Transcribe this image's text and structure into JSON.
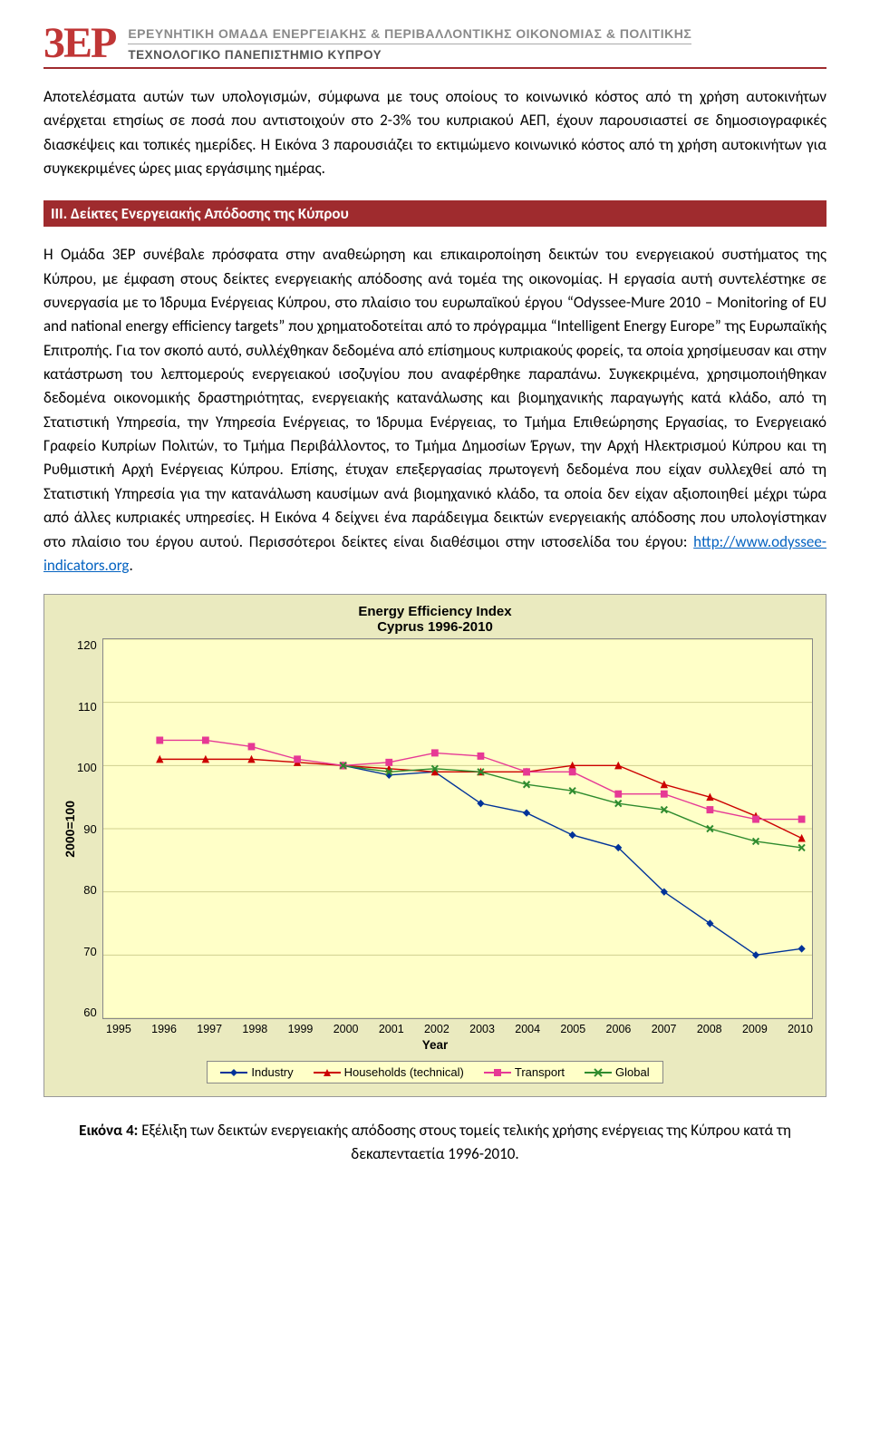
{
  "header": {
    "logo": "3EP",
    "line1": "ΕΡΕΥΝΗΤΙΚΗ ΟΜΑΔΑ ΕΝΕΡΓΕΙΑΚΗΣ & ΠΕΡΙΒΑΛΛΟΝΤΙΚΗΣ ΟΙΚΟΝΟΜΙΑΣ & ΠΟΛΙΤΙΚΗΣ",
    "line2": "ΤΕΧΝΟΛΟΓΙΚΟ ΠΑΝΕΠΙΣΤΗΜΙΟ ΚΥΠΡΟΥ"
  },
  "paragraph1": "Αποτελέσματα αυτών των υπολογισμών, σύμφωνα με τους οποίους το κοινωνικό κόστος από τη χρήση αυτοκινήτων ανέρχεται ετησίως σε ποσά που αντιστοιχούν στο 2-3% του κυπριακού ΑΕΠ, έχουν παρουσιαστεί σε δημοσιογραφικές διασκέψεις και τοπικές ημερίδες. Η Εικόνα 3 παρουσιάζει το εκτιμώμενο κοινωνικό κόστος από τη χρήση αυτοκινήτων για συγκεκριμένες ώρες μιας εργάσιμης ημέρας.",
  "section_heading": "III. Δείκτες Ενεργειακής Απόδοσης της Κύπρου",
  "paragraph2_a": "Η Ομάδα 3ΕΡ συνέβαλε πρόσφατα στην αναθεώρηση και επικαιροποίηση δεικτών του ενεργειακού συστήματος της Κύπρου, με έμφαση στους δείκτες ενεργειακής απόδοσης ανά τομέα της οικονομίας. Η εργασία αυτή συντελέστηκε σε συνεργασία με το Ίδρυμα Ενέργειας Κύπρου, στο πλαίσιο του ευρωπαϊκού έργου “Odyssee-Mure 2010 – Monitoring of EU and national energy efficiency targets” που χρηματοδοτείται από το πρόγραμμα “Intelligent Energy Europe” της Ευρωπαϊκής Επιτροπής. Για τον σκοπό αυτό, συλλέχθηκαν δεδομένα από επίσημους κυπριακούς φορείς, τα οποία χρησίμευσαν και στην κατάστρωση του λεπτομερούς ενεργειακού ισοζυγίου που αναφέρθηκε παραπάνω. Συγκεκριμένα, χρησιμοποιήθηκαν δεδομένα οικονομικής δραστηριότητας, ενεργειακής κατανάλωσης και βιομηχανικής παραγωγής κατά κλάδο, από τη Στατιστική Υπηρεσία, την Υπηρεσία Ενέργειας, το Ίδρυμα Ενέργειας, το Τμήμα Επιθεώρησης Εργασίας, το Ενεργειακό Γραφείο Κυπρίων Πολιτών, το Τμήμα Περιβάλλοντος, το Τμήμα Δημοσίων Έργων, την Αρχή Ηλεκτρισμού Κύπρου και τη Ρυθμιστική Αρχή Ενέργειας Κύπρου. Επίσης, έτυχαν επεξεργασίας πρωτογενή δεδομένα που είχαν συλλεχθεί από τη Στατιστική Υπηρεσία για την κατανάλωση καυσίμων ανά βιομηχανικό κλάδο, τα οποία δεν είχαν αξιοποιηθεί μέχρι τώρα από άλλες κυπριακές υπηρεσίες. Η Εικόνα 4 δείχνει ένα παράδειγμα δεικτών ενεργειακής απόδοσης που υπολογίστηκαν στο πλαίσιο του έργου αυτού. Περισσότεροι δείκτες είναι διαθέσιμοι στην ιστοσελίδα του έργου: ",
  "link_text": "http://www.odyssee-indicators.org",
  "link_href": "http://www.odyssee-indicators.org",
  "paragraph2_b": ".",
  "chart": {
    "type": "line",
    "title": "Energy Efficiency Index",
    "subtitle": "Cyprus 1996-2010",
    "xlabel": "Year",
    "ylabel": "2000=100",
    "years": [
      1995,
      1996,
      1997,
      1998,
      1999,
      2000,
      2001,
      2002,
      2003,
      2004,
      2005,
      2006,
      2007,
      2008,
      2009,
      2010
    ],
    "yticks": [
      60,
      70,
      80,
      90,
      100,
      110,
      120
    ],
    "ylim": [
      60,
      120
    ],
    "background_color": "#ffffc8",
    "frame_color": "#eaeabf",
    "grid_color": "#d0d090",
    "tick_fontsize": 13,
    "label_fontsize": 14,
    "title_fontsize": 15,
    "line_width": 1.4,
    "marker_size": 7,
    "series": [
      {
        "name": "Industry",
        "color": "#003399",
        "marker": "diamond",
        "data": [
          null,
          null,
          null,
          null,
          null,
          100,
          98.5,
          99.0,
          94.0,
          92.5,
          89.0,
          87.0,
          80.0,
          75.0,
          70.0,
          71.0
        ]
      },
      {
        "name": "Households (technical)",
        "color": "#cc0000",
        "marker": "triangle",
        "data": [
          null,
          101.0,
          101.0,
          101.0,
          100.5,
          100,
          99.5,
          99.0,
          99.0,
          99.0,
          100.0,
          100.0,
          97.0,
          95.0,
          92.0,
          88.5
        ]
      },
      {
        "name": "Transport",
        "color": "#e63995",
        "marker": "square",
        "data": [
          null,
          104.0,
          104.0,
          103.0,
          101.0,
          100,
          100.5,
          102.0,
          101.5,
          99.0,
          99.0,
          95.5,
          95.5,
          93.0,
          91.5,
          91.5
        ]
      },
      {
        "name": "Global",
        "color": "#2e8b2e",
        "marker": "x",
        "data": [
          null,
          null,
          null,
          null,
          null,
          100,
          99.0,
          99.5,
          99.0,
          97.0,
          96.0,
          94.0,
          93.0,
          90.0,
          88.0,
          87.0
        ]
      }
    ],
    "legend_labels": [
      "Industry",
      "Households (technical)",
      "Transport",
      "Global"
    ]
  },
  "figure_caption_bold": "Εικόνα 4:",
  "figure_caption_rest": " Εξέλιξη των δεικτών ενεργειακής απόδοσης στους τομείς τελικής χρήσης ενέργειας της Κύπρου κατά τη δεκαπενταετία 1996-2010."
}
